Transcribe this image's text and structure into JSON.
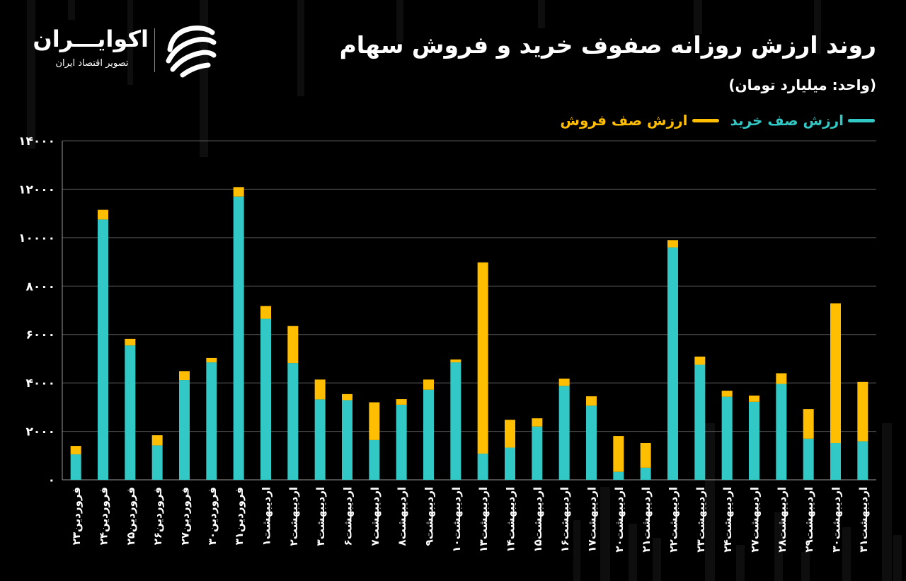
{
  "header": {
    "title": "روند ارزش روزانه صفوف خرید و فروش سهام",
    "unit": "(واحد: میلیارد تومان)"
  },
  "logo": {
    "name": "اکوایـــران",
    "tagline": "تصویر اقتصاد ایران",
    "icon": "ekoiran-logo-icon"
  },
  "colors": {
    "buy": "#32c8c6",
    "sell": "#ffbe00",
    "grid": "#555555",
    "background": "#000000"
  },
  "chart_data": {
    "type": "bar",
    "stacked": true,
    "title": "روند ارزش روزانه صفوف خرید و فروش سهام",
    "subtitle": "(واحد: میلیارد تومان)",
    "legend_position": "top-right",
    "grid": true,
    "ylim": [
      0,
      14000
    ],
    "yticks": [
      "۰",
      "۲۰۰۰",
      "۴۰۰۰",
      "۶۰۰۰",
      "۸۰۰۰",
      "۱۰۰۰۰",
      "۱۲۰۰۰",
      "۱۴۰۰۰"
    ],
    "ytick_values": [
      0,
      2000,
      4000,
      6000,
      8000,
      10000,
      12000,
      14000
    ],
    "categories": [
      "فروردین۲۳",
      "فروردین۲۴",
      "فروردین۲۵",
      "فروردین۲۶",
      "فروردین۲۷",
      "فروردین۳۰",
      "فروردین۳۱",
      "اردیبهشت۱",
      "اردیبهشت۲",
      "اردیبهشت۳",
      "اردیبهشت۶",
      "اردیبهشت۷",
      "اردیبهشت۸",
      "اردیبهشت۹",
      "اردیبهشت۱۰",
      "اردیبهشت۱۳",
      "اردیبهشت۱۴",
      "اردیبهشت۱۵",
      "اردیبهشت۱۶",
      "اردیبهشت۱۷",
      "اردیبهشت۲۰",
      "اردیبهشت۲۱",
      "اردیبهشت۲۲",
      "اردیبهشت۲۳",
      "اردیبهشت۲۴",
      "اردیبهشت۲۷",
      "اردیبهشت۲۸",
      "اردیبهشت۲۹",
      "اردیبهشت۳۰",
      "اردیبهشت۳۱"
    ],
    "series": [
      {
        "name": "ارزش صف خرید",
        "values": [
          1050,
          10750,
          5550,
          1420,
          4120,
          4850,
          11700,
          6650,
          4820,
          3320,
          3290,
          1640,
          3100,
          3720,
          4850,
          1080,
          1330,
          2200,
          3880,
          3060,
          330,
          500,
          9600,
          4750,
          3430,
          3220,
          3960,
          1700,
          1520,
          1590
        ]
      },
      {
        "name": "ارزش صف فروش",
        "values": [
          350,
          400,
          270,
          420,
          370,
          180,
          390,
          530,
          1530,
          820,
          250,
          1560,
          230,
          420,
          120,
          7900,
          1150,
          340,
          300,
          390,
          1480,
          1020,
          300,
          340,
          250,
          260,
          440,
          1220,
          5770,
          2450
        ]
      }
    ]
  }
}
